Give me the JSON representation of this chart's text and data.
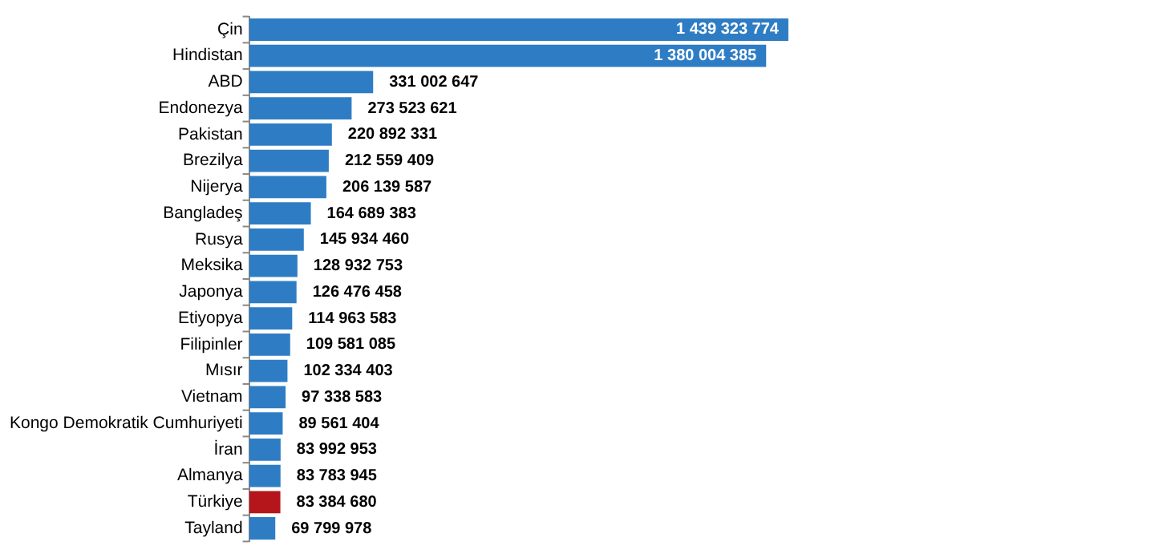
{
  "chart_data": {
    "type": "bar",
    "orientation": "horizontal",
    "categories": [
      "Çin",
      "Hindistan",
      "ABD",
      "Endonezya",
      "Pakistan",
      "Brezilya",
      "Nijerya",
      "Bangladeş",
      "Rusya",
      "Meksika",
      "Japonya",
      "Etiyopya",
      "Filipinler",
      "Mısır",
      "Vietnam",
      "Kongo Demokratik Cumhuriyeti",
      "İran",
      "Almanya",
      "Türkiye",
      "Tayland"
    ],
    "values": [
      1439323774,
      1380004385,
      331002647,
      273523621,
      220892331,
      212559409,
      206139587,
      164689383,
      145934460,
      128932753,
      126476458,
      114963583,
      109581085,
      102334403,
      97338583,
      89561404,
      83992953,
      83783945,
      83384680,
      69799978
    ],
    "value_labels": [
      "1 439 323 774",
      "1 380 004 385",
      "331 002 647",
      "273 523 621",
      "220 892 331",
      "212 559 409",
      "206 139 587",
      "164 689 383",
      "145 934 460",
      "128 932 753",
      "126 476 458",
      "114 963 583",
      "109 581 085",
      "102 334 403",
      "97 338 583",
      "89 561 404",
      "83 992 953",
      "83 783 945",
      "83 384 680",
      "69 799 978"
    ],
    "colors": [
      "#2e7dc4",
      "#2e7dc4",
      "#2e7dc4",
      "#2e7dc4",
      "#2e7dc4",
      "#2e7dc4",
      "#2e7dc4",
      "#2e7dc4",
      "#2e7dc4",
      "#2e7dc4",
      "#2e7dc4",
      "#2e7dc4",
      "#2e7dc4",
      "#2e7dc4",
      "#2e7dc4",
      "#2e7dc4",
      "#2e7dc4",
      "#2e7dc4",
      "#b5161b",
      "#2e7dc4"
    ]
  }
}
